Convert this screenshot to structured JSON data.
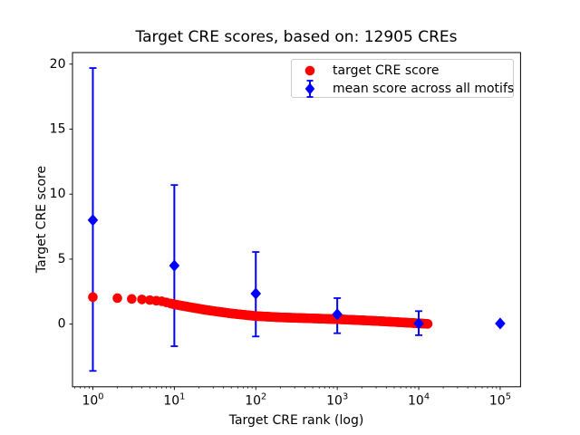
{
  "figure": {
    "title": "Target CRE scores, based on: 12905 CREs",
    "xlabel": "Target CRE rank (log)",
    "ylabel": "Target CRE score"
  },
  "legend": {
    "items": [
      {
        "label": "target CRE score",
        "marker": "red-circle",
        "color": "#ff0000"
      },
      {
        "label": "mean score across all motifs",
        "marker": "blue-diamond-errorbar",
        "color": "#0000ff"
      }
    ]
  },
  "chart_data": {
    "type": "scatter",
    "title": "Target CRE scores, based on: 12905 CREs",
    "xlabel": "Target CRE rank (log)",
    "ylabel": "Target CRE score",
    "n_cres": 12905,
    "x_scale": "log",
    "xlim_log10": [
      -0.25,
      5.25
    ],
    "ylim": [
      -4.82,
      20.89
    ],
    "yticks": [
      0,
      5,
      10,
      15,
      20
    ],
    "xtick_exponents": [
      0,
      1,
      2,
      3,
      4,
      5
    ],
    "grid": false,
    "legend_position": "upper right",
    "colors": {
      "target": "#ff0000",
      "mean": "#0000ff",
      "axes": "#000000",
      "legend_border": "#cccccc"
    },
    "series": [
      {
        "name": "target CRE score",
        "type": "scatter",
        "marker": "circle",
        "color": "#ff0000",
        "rank_range": [
          1,
          12905
        ],
        "anchor_ranks": [
          1,
          2,
          3,
          4,
          5,
          7,
          10,
          15,
          25,
          50,
          100,
          200,
          500,
          1000,
          2500,
          5000,
          10000,
          12905
        ],
        "anchor_scores": [
          2.08,
          2.0,
          1.94,
          1.9,
          1.85,
          1.76,
          1.52,
          1.32,
          1.08,
          0.82,
          0.62,
          0.52,
          0.44,
          0.38,
          0.27,
          0.17,
          0.06,
          0.02
        ]
      },
      {
        "name": "mean score across all motifs",
        "type": "scatter-errorbar",
        "marker": "diamond",
        "color": "#0000ff",
        "points": [
          {
            "rank": 1,
            "y": 8.0,
            "ylow": -3.6,
            "yhigh": 19.7
          },
          {
            "rank": 10,
            "y": 4.5,
            "ylow": -1.7,
            "yhigh": 10.7
          },
          {
            "rank": 100,
            "y": 2.35,
            "ylow": -0.95,
            "yhigh": 5.55
          },
          {
            "rank": 1000,
            "y": 0.75,
            "ylow": -0.7,
            "yhigh": 2.0
          },
          {
            "rank": 10000,
            "y": 0.05,
            "ylow": -0.85,
            "yhigh": 1.0
          },
          {
            "rank": 100000,
            "y": 0.05,
            "ylow": null,
            "yhigh": null
          }
        ]
      }
    ]
  }
}
